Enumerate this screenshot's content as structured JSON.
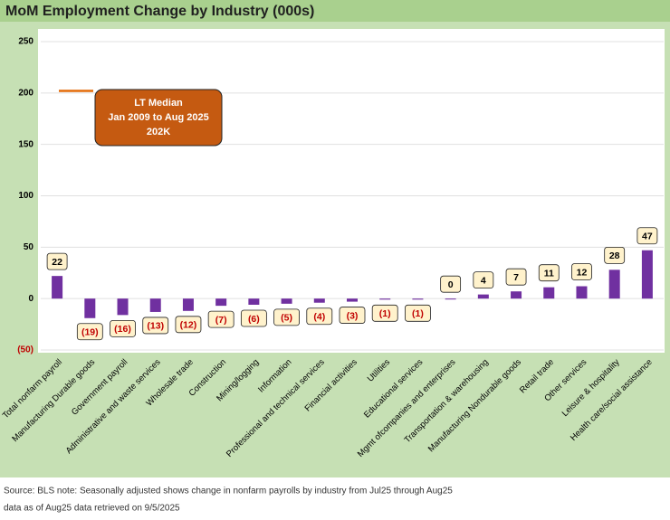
{
  "chart_data": {
    "type": "bar",
    "title": "MoM Employment Change by Industry (000s)",
    "categories": [
      "Total nonfarm payroll",
      "Manufacturing Durable goods",
      "Government payroll",
      "Administrative and waste services",
      "Wholesale trade",
      "Construction",
      "Mining/logging",
      "Information",
      "Professional and technical services",
      "Financial activities",
      "Utilities",
      "Educational services",
      "Mgmt ofcompanies and enterprises",
      "Transportation & warehousing",
      "Manufacturing Nondurable goods",
      "Retail trade",
      "Other services",
      "Leisure & hospitality",
      "Health care/social assistance"
    ],
    "values": [
      22,
      -19,
      -16,
      -13,
      -12,
      -7,
      -6,
      -5,
      -4,
      -3,
      -1,
      -1,
      0,
      4,
      7,
      11,
      12,
      28,
      47
    ],
    "value_labels": [
      "22",
      "(19)",
      "(16)",
      "(13)",
      "(12)",
      "(7)",
      "(6)",
      "(5)",
      "(4)",
      "(3)",
      "(1)",
      "(1)",
      "0",
      "4",
      "7",
      "11",
      "12",
      "28",
      "47"
    ],
    "color": "#7030a0",
    "ylim": [
      -50,
      250
    ],
    "yticks": [
      {
        "value": -50,
        "label": "(50)"
      },
      0,
      50,
      100,
      150,
      200,
      250
    ],
    "grid": true,
    "median": 202,
    "median_color": "#e36c09",
    "annotation": [
      "LT Median",
      "Jan 2009 to Aug 2025",
      "202K"
    ],
    "footer": [
      "Source: BLS   note: Seasonally adjusted     shows change in nonfarm payrolls by industry from Jul25 through Aug25",
      "data as of Aug25    data retrieved on 9/5/2025"
    ]
  }
}
